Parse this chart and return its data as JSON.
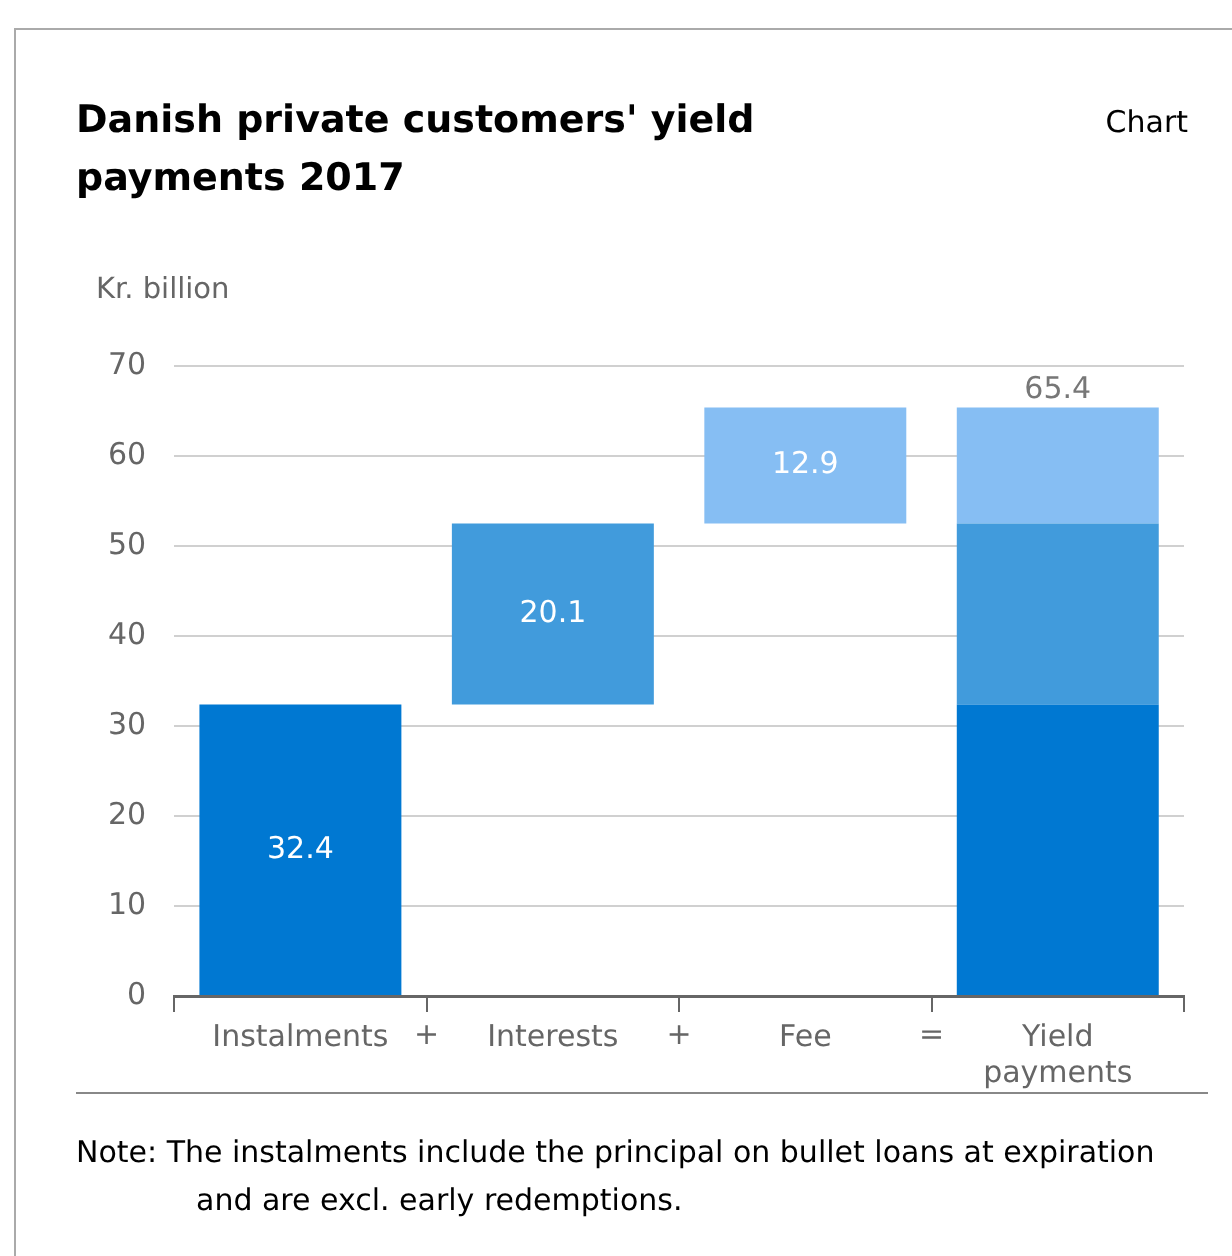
{
  "chart_data": {
    "type": "bar",
    "title": "Danish private customers' yield payments 2017",
    "ylabel": "Kr. billion",
    "categories": [
      "Instalments",
      "Interests",
      "Fee",
      "Yield payments"
    ],
    "series": [
      {
        "color": "#0078d2",
        "values": [
          32.4,
          null,
          null,
          32.4
        ],
        "base": [
          0,
          null,
          null,
          0
        ],
        "value_labels": [
          "32.4",
          null,
          null,
          null
        ]
      },
      {
        "color": "#419bdc",
        "values": [
          null,
          20.1,
          null,
          20.1
        ],
        "base": [
          null,
          32.4,
          null,
          32.4
        ],
        "value_labels": [
          null,
          "20.1",
          null,
          null
        ]
      },
      {
        "color": "#86bef3",
        "values": [
          null,
          null,
          12.9,
          12.9
        ],
        "base": [
          null,
          null,
          52.5,
          52.5
        ],
        "value_labels": [
          null,
          null,
          "12.9",
          null
        ]
      }
    ],
    "totals": [
      null,
      null,
      null,
      "65.4"
    ],
    "ylim": [
      0,
      70
    ],
    "yticks": [
      0,
      10,
      20,
      30,
      40,
      50,
      60,
      70
    ],
    "grid": "y",
    "legend": false,
    "annotations": [
      "Chart",
      "+",
      "+",
      "=",
      "Note: The instalments include the principal on bullet loans at expiration and are excl. early redemptions."
    ]
  }
}
